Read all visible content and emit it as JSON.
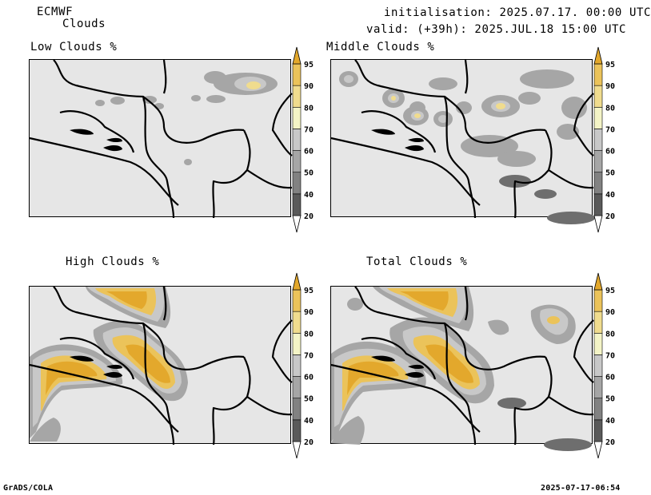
{
  "header": {
    "model": "ECMWF",
    "field": "Clouds",
    "init": "initialisation: 2025.07.17. 00:00 UTC",
    "valid": "valid: (+39h): 2025.JUL.18 15:00 UTC"
  },
  "panels": [
    {
      "title": "Low Clouds %"
    },
    {
      "title": "Middle Clouds %"
    },
    {
      "title": "High Clouds %"
    },
    {
      "title": "Total Clouds %"
    }
  ],
  "colorbar": {
    "levels": [
      "20",
      "40",
      "50",
      "60",
      "70",
      "80",
      "90",
      "95"
    ],
    "colors": [
      "#ffffff",
      "#5a5a5a",
      "#828282",
      "#a6a6a6",
      "#c8c8c8",
      "#f4f4c6",
      "#f0dc8e",
      "#ebc35a",
      "#e3a82c"
    ]
  },
  "footer": {
    "left": "GrADS/COLA",
    "right": "2025-07-17-06:54"
  }
}
